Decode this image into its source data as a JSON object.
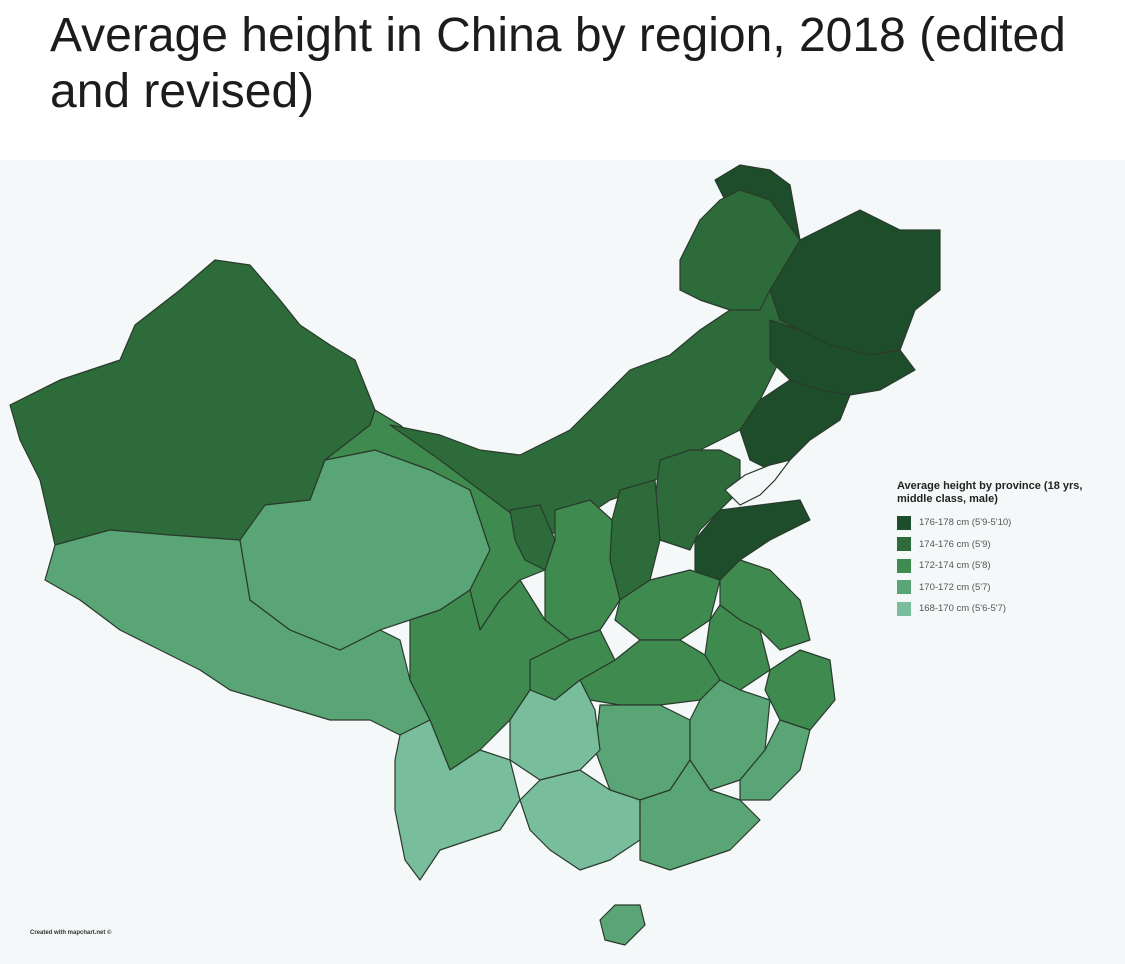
{
  "title": "Average height in China by region, 2018 (edited and revised)",
  "colors": {
    "c176_178": "#1e4d2b",
    "c174_176": "#2d6b3a",
    "c172_174": "#3f8a4f",
    "c170_172": "#5aa575",
    "c168_170": "#78bd9c",
    "background": "#f5f8f9"
  },
  "legend": {
    "title": "Average height by province (18 yrs, middle class, male)",
    "items": [
      {
        "label": "176-178 cm (5'9-5'10)",
        "color": "#1e4d2b"
      },
      {
        "label": "174-176 cm (5'9)",
        "color": "#2d6b3a"
      },
      {
        "label": "172-174 cm (5'8)",
        "color": "#3f8a4f"
      },
      {
        "label": "170-172 cm (5'7)",
        "color": "#5aa575"
      },
      {
        "label": "168-170 cm (5'6-5'7)",
        "color": "#78bd9c"
      }
    ]
  },
  "credit": "Created with mapchart.net ©"
}
